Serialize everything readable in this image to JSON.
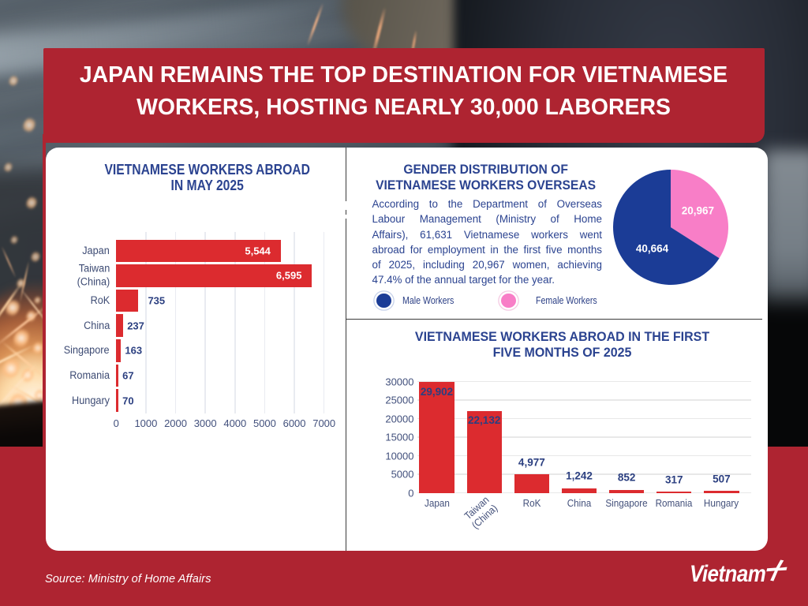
{
  "header": {
    "title": "JAPAN REMAINS THE TOP DESTINATION FOR VIETNAMESE\nWORKERS, HOSTING NEARLY 30,000 LABORERS"
  },
  "footer": {
    "source": "Source: Ministry of Home Affairs",
    "brand": "Vietnam",
    "brand_plus_icon": "plus-icon"
  },
  "colors": {
    "frame_red": "#AE2431",
    "bar_red": "#DC2B2F",
    "navy": "#2B4390",
    "value_navy": "#2B3F80",
    "label_slate": "#3E4C74",
    "male_blue": "#1B3C96",
    "female_pink": "#F87EC7",
    "white": "#FFFFFF"
  },
  "chart_data": [
    {
      "id": "may-2025",
      "type": "bar",
      "orientation": "horizontal",
      "title": "VIETNAMESE WORKERS ABROAD\nIN MAY 2025",
      "categories": [
        "Japan",
        "Taiwan\n(China)",
        "RoK",
        "China",
        "Singapore",
        "Romania",
        "Hungary"
      ],
      "values": [
        5544,
        6595,
        735,
        237,
        163,
        67,
        70
      ],
      "value_labels": [
        "5,544",
        "6,595",
        "735",
        "237",
        "163",
        "67",
        "70"
      ],
      "xlim": [
        0,
        7000
      ],
      "xticks": [
        0,
        1000,
        2000,
        3000,
        4000,
        5000,
        6000,
        7000
      ],
      "grid": true,
      "bar_color": "#DC2B2F"
    },
    {
      "id": "gender-distribution",
      "type": "pie",
      "title": "GENDER DISTRIBUTION OF\nVIETNAMESE WORKERS OVERSEAS",
      "description_lines": [
        "According to the Department of Overseas",
        "Labour Management (Ministry of Home",
        "Affairs), 61,631 Vietnamese workers went",
        "abroad for employment in the first five months",
        "of 2025, including 20,967 women, achieving",
        "47.4% of the annual target for the year."
      ],
      "slices": [
        {
          "label": "Female Workers",
          "value": 20967,
          "display": "20,967",
          "color": "#F87EC7"
        },
        {
          "label": "Male Workers",
          "value": 40664,
          "display": "40,664",
          "color": "#1B3C96"
        }
      ],
      "pie_start": "top",
      "pie_direction": "clockwise",
      "legend": [
        {
          "label": "Male Workers",
          "color": "#1B3C96"
        },
        {
          "label": "Female Workers",
          "color": "#F87EC7"
        }
      ]
    },
    {
      "id": "first-five-months-2025",
      "type": "bar",
      "orientation": "vertical",
      "title": "VIETNAMESE WORKERS ABROAD IN THE FIRST\nFIVE MONTHS OF 2025",
      "categories": [
        "Japan",
        "Taiwan\n(China)",
        "RoK",
        "China",
        "Singapore",
        "Romania",
        "Hungary"
      ],
      "values": [
        29902,
        22132,
        4977,
        1242,
        852,
        317,
        507
      ],
      "value_labels": [
        "29,902",
        "22,132",
        "4,977",
        "1,242",
        "852",
        "317",
        "507"
      ],
      "ylim": [
        0,
        30000
      ],
      "yticks": [
        0,
        5000,
        10000,
        15000,
        20000,
        25000,
        30000
      ],
      "grid": true,
      "bar_color": "#DC2B2F"
    }
  ]
}
